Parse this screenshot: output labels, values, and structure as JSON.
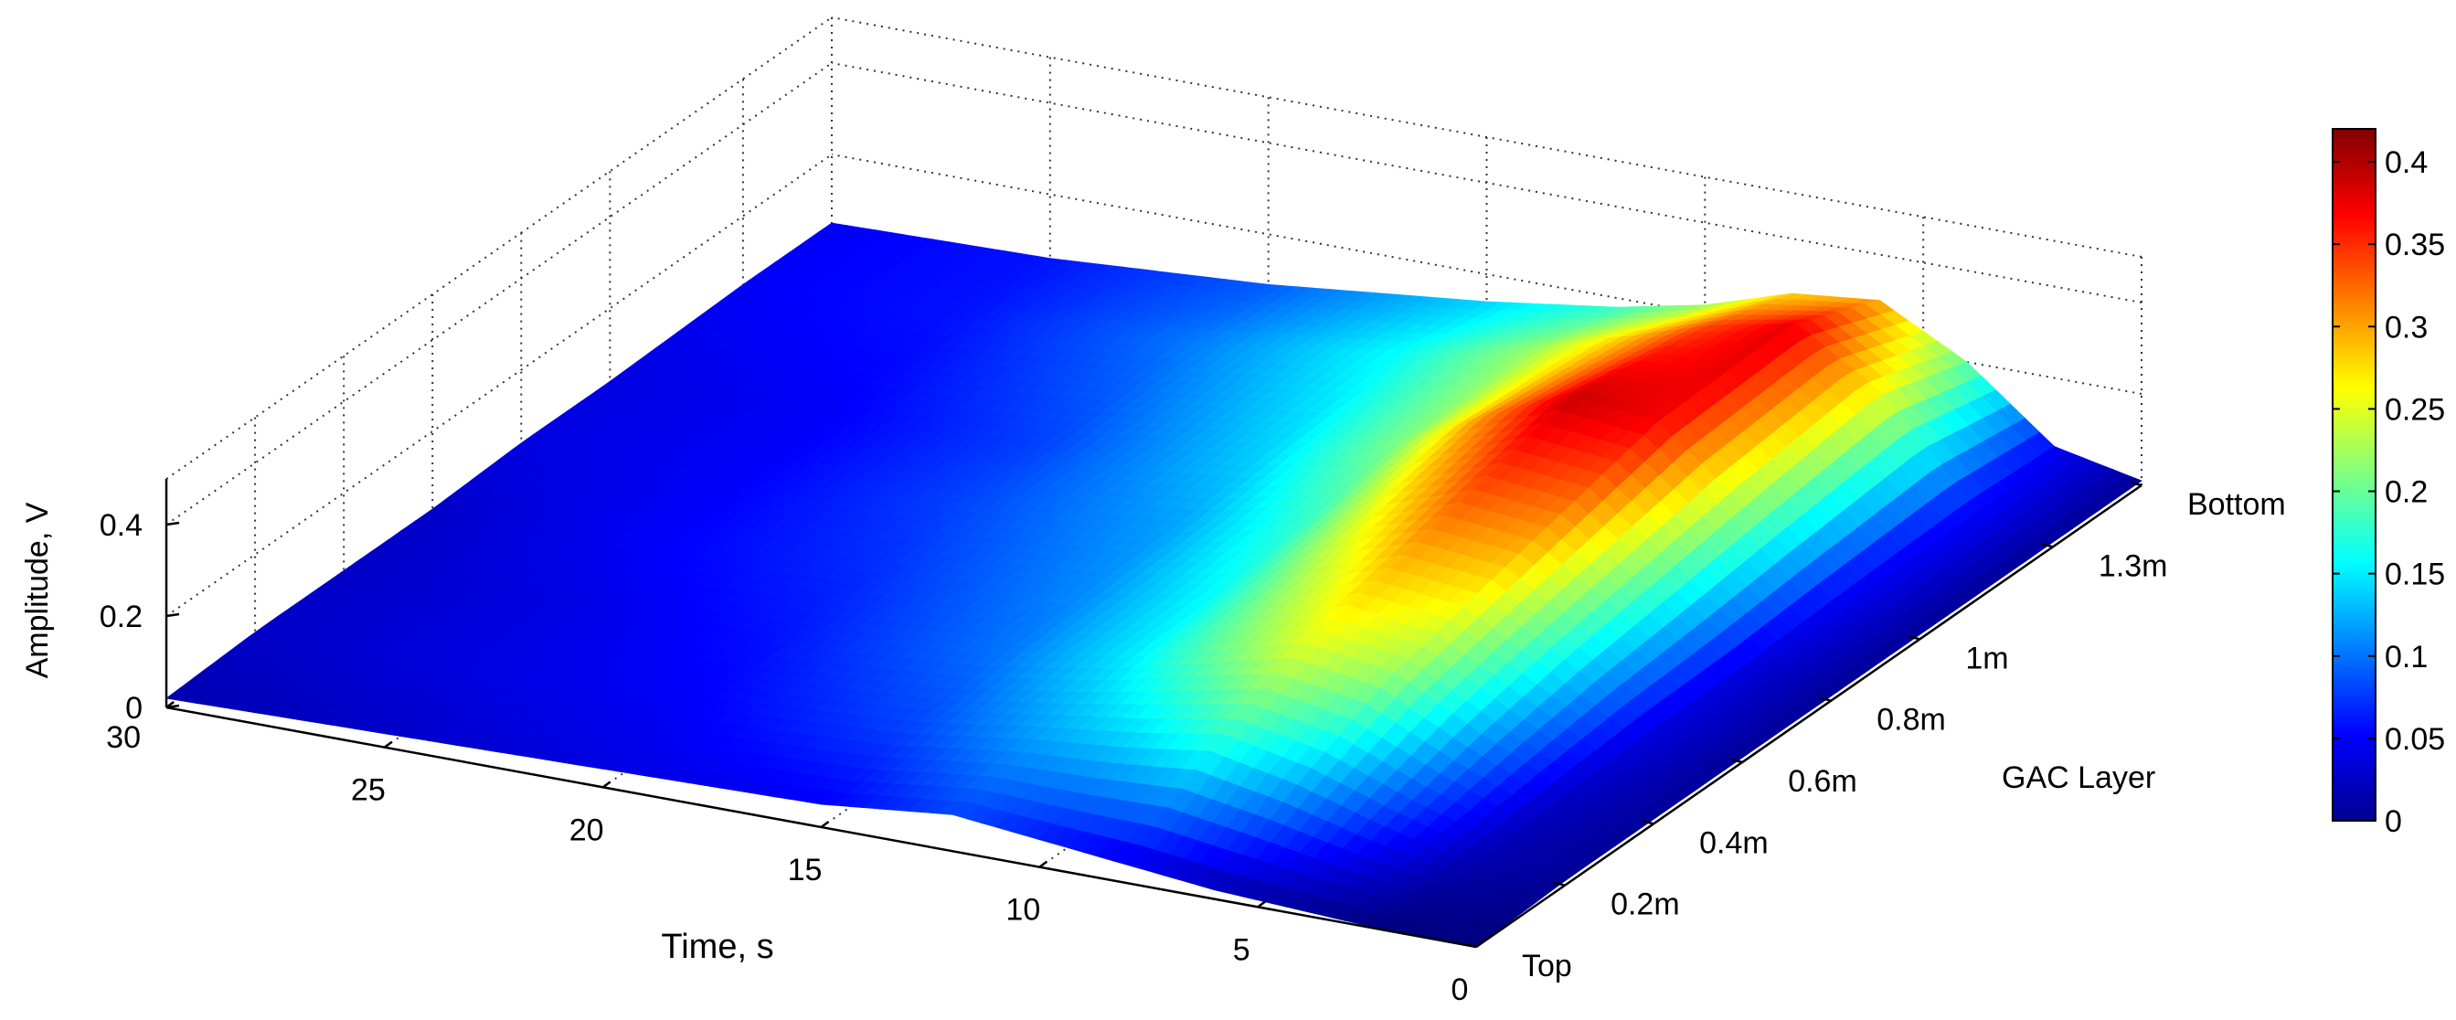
{
  "chart_data": {
    "type": "surface",
    "title": "",
    "xlabel": "Time, s",
    "ylabel": "GAC Layer",
    "zlabel": "Amplitude, V",
    "time_axis": {
      "range": [
        0,
        30
      ],
      "ticks": [
        0,
        5,
        10,
        15,
        20,
        25,
        30
      ],
      "tick_labels": [
        "0",
        "5",
        "10",
        "15",
        "20",
        "25",
        "30"
      ]
    },
    "layer_axis": {
      "range": [
        0,
        1.5
      ],
      "ticks": [
        0,
        0.2,
        0.4,
        0.6,
        0.8,
        1.0,
        1.3,
        1.5
      ],
      "tick_labels": [
        "Top",
        "0.2m",
        "0.4m",
        "0.6m",
        "0.8m",
        "1m",
        "1.3m",
        "Bottom"
      ]
    },
    "amplitude_axis": {
      "range": [
        0,
        0.5
      ],
      "ticks": [
        0,
        0.2,
        0.4
      ],
      "tick_labels": [
        "0",
        "0.2",
        "0.4"
      ]
    },
    "grid": true,
    "colormap": "jet",
    "colorbar": {
      "range": [
        0,
        0.42
      ],
      "ticks": [
        0,
        0.05,
        0.1,
        0.15,
        0.2,
        0.25,
        0.3,
        0.35,
        0.4
      ],
      "tick_labels": [
        "0",
        "0.05",
        "0.1",
        "0.15",
        "0.2",
        "0.25",
        "0.3",
        "0.35",
        "0.4"
      ],
      "placement": "right"
    },
    "time_samples": [
      0,
      2,
      4,
      6,
      8,
      10,
      12,
      15,
      20,
      25,
      30
    ],
    "layer_samples": [
      0,
      0.2,
      0.4,
      0.6,
      0.8,
      1.0,
      1.3,
      1.5
    ],
    "amplitude_grid": [
      [
        0.0,
        0.0,
        0.01,
        0.02,
        0.04,
        0.06,
        0.08,
        0.05,
        0.04,
        0.03,
        0.02
      ],
      [
        0.01,
        0.02,
        0.07,
        0.13,
        0.17,
        0.14,
        0.12,
        0.08,
        0.05,
        0.04,
        0.03
      ],
      [
        0.01,
        0.03,
        0.12,
        0.22,
        0.25,
        0.2,
        0.15,
        0.1,
        0.06,
        0.04,
        0.03
      ],
      [
        0.01,
        0.04,
        0.16,
        0.27,
        0.29,
        0.23,
        0.16,
        0.11,
        0.07,
        0.05,
        0.03
      ],
      [
        0.01,
        0.04,
        0.19,
        0.32,
        0.34,
        0.27,
        0.18,
        0.12,
        0.08,
        0.05,
        0.04
      ],
      [
        0.01,
        0.05,
        0.22,
        0.37,
        0.39,
        0.31,
        0.21,
        0.14,
        0.08,
        0.05,
        0.04
      ],
      [
        0.01,
        0.06,
        0.26,
        0.38,
        0.34,
        0.28,
        0.22,
        0.16,
        0.1,
        0.06,
        0.05
      ],
      [
        0.01,
        0.05,
        0.2,
        0.3,
        0.28,
        0.22,
        0.18,
        0.14,
        0.09,
        0.06,
        0.05
      ]
    ]
  }
}
